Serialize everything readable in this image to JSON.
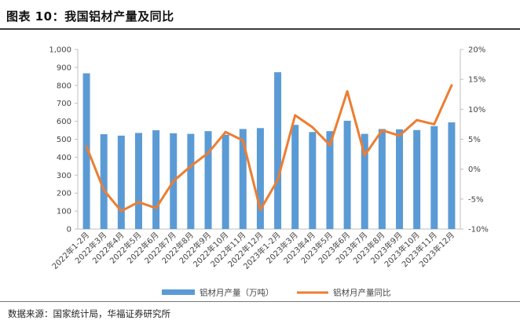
{
  "header": {
    "title": "图表 10：我国铝材产量及同比",
    "source": "数据来源：国家统计局，华福证券研究所"
  },
  "colors": {
    "bar": "#5b9bd5",
    "line": "#ed7d31",
    "axis": "#bfbfbf"
  },
  "chart_data": {
    "type": "bar",
    "categories": [
      "2022年1-2月",
      "2022年3月",
      "2022年4月",
      "2022年5月",
      "2022年6月",
      "2022年7月",
      "2022年8月",
      "2022年9月",
      "2022年10月",
      "2022年11月",
      "2022年12月",
      "2023年1-2月",
      "2023年3月",
      "2023年4月",
      "2023年5月",
      "2023年6月",
      "2023年7月",
      "2023年8月",
      "2023年9月",
      "2023年10月",
      "2023年11月",
      "2023年12月"
    ],
    "series": [
      {
        "name": "铝材月产量（万吨）",
        "type": "bar",
        "axis": "left",
        "values": [
          867,
          528,
          520,
          535,
          550,
          533,
          530,
          545,
          525,
          557,
          562,
          873,
          580,
          540,
          545,
          603,
          530,
          557,
          555,
          551,
          573,
          594
        ]
      },
      {
        "name": "铝材月产量同比",
        "type": "line",
        "axis": "right",
        "values": [
          3.8,
          -3.5,
          -7.0,
          -5.5,
          -6.5,
          -2.0,
          0.5,
          2.7,
          6.2,
          4.8,
          -6.8,
          -1.8,
          9.0,
          7.0,
          4.0,
          13.0,
          2.3,
          6.5,
          5.6,
          8.2,
          7.5,
          14.0
        ]
      }
    ],
    "y_left": {
      "min": 0,
      "max": 1000,
      "ticks": [
        "0",
        "100",
        "200",
        "300",
        "400",
        "500",
        "600",
        "700",
        "800",
        "900",
        "1,000"
      ]
    },
    "y_right": {
      "min": -10,
      "max": 20,
      "ticks": [
        "-10%",
        "-5%",
        "0%",
        "5%",
        "10%",
        "15%",
        "20%"
      ]
    },
    "legend_position": "bottom",
    "grid": false
  }
}
